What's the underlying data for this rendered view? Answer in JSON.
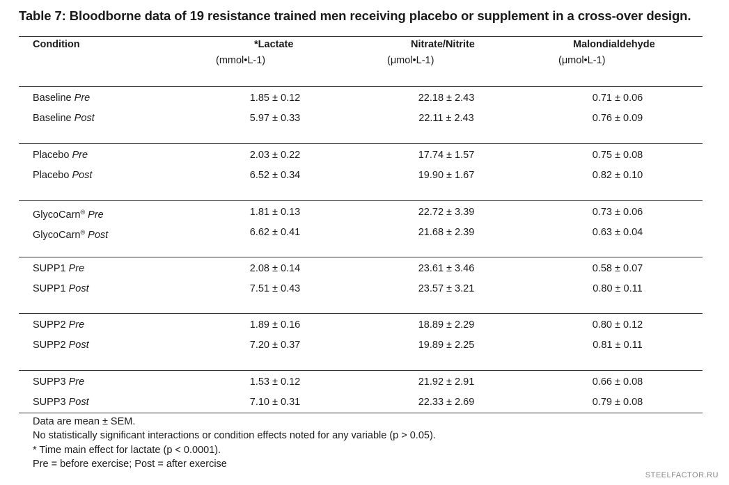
{
  "table": {
    "title": "Table 7: Bloodborne data of 19 resistance trained men receiving placebo or supplement in a cross-over design.",
    "header": {
      "condition": "Condition",
      "lactate": "*Lactate",
      "lactate_unit": "(mmol•L-1)",
      "nitrate": "Nitrate/Nitrite",
      "nitrate_unit": "(μmol•L-1)",
      "mda": "Malondialdehyde",
      "mda_unit": "(μmol•L-1)"
    },
    "groups": [
      {
        "name": "Baseline",
        "sup": "",
        "rows": [
          {
            "time": "Pre",
            "lactate": "1.85 ± 0.12",
            "nitrate": "22.18 ± 2.43",
            "mda": "0.71 ± 0.06"
          },
          {
            "time": "Post",
            "lactate": "5.97 ± 0.33",
            "nitrate": "22.11 ± 2.43",
            "mda": "0.76 ± 0.09"
          }
        ]
      },
      {
        "name": "Placebo",
        "sup": "",
        "rows": [
          {
            "time": "Pre",
            "lactate": "2.03 ± 0.22",
            "nitrate": "17.74 ± 1.57",
            "mda": "0.75 ± 0.08"
          },
          {
            "time": "Post",
            "lactate": "6.52 ± 0.34",
            "nitrate": "19.90 ± 1.67",
            "mda": "0.82 ± 0.10"
          }
        ]
      },
      {
        "name": "GlycoCarn",
        "sup": "®",
        "rows": [
          {
            "time": "Pre",
            "lactate": "1.81 ± 0.13",
            "nitrate": "22.72 ± 3.39",
            "mda": "0.73 ± 0.06"
          },
          {
            "time": "Post",
            "lactate": "6.62 ± 0.41",
            "nitrate": "21.68 ± 2.39",
            "mda": "0.63 ± 0.04"
          }
        ]
      },
      {
        "name": "SUPP1",
        "sup": "",
        "rows": [
          {
            "time": "Pre",
            "lactate": "2.08 ± 0.14",
            "nitrate": "23.61 ± 3.46",
            "mda": "0.58 ± 0.07"
          },
          {
            "time": "Post",
            "lactate": "7.51 ± 0.43",
            "nitrate": "23.57 ± 3.21",
            "mda": "0.80 ± 0.11"
          }
        ]
      },
      {
        "name": "SUPP2",
        "sup": "",
        "rows": [
          {
            "time": "Pre",
            "lactate": "1.89 ± 0.16",
            "nitrate": "18.89 ± 2.29",
            "mda": "0.80 ± 0.12"
          },
          {
            "time": "Post",
            "lactate": "7.20 ± 0.37",
            "nitrate": "19.89 ± 2.25",
            "mda": "0.81 ± 0.11"
          }
        ]
      },
      {
        "name": "SUPP3",
        "sup": "",
        "rows": [
          {
            "time": "Pre",
            "lactate": "1.53 ± 0.12",
            "nitrate": "21.92 ± 2.91",
            "mda": "0.66 ± 0.08"
          },
          {
            "time": "Post",
            "lactate": "7.10 ± 0.31",
            "nitrate": "22.33 ± 2.69",
            "mda": "0.79 ± 0.08"
          }
        ]
      }
    ],
    "notes": [
      "Data are mean ± SEM.",
      "No statistically significant interactions or condition effects noted for any variable (p > 0.05).",
      "* Time main effect for lactate (p < 0.0001).",
      "Pre = before exercise; Post = after exercise"
    ]
  },
  "watermark": "STEELFACTOR.RU"
}
